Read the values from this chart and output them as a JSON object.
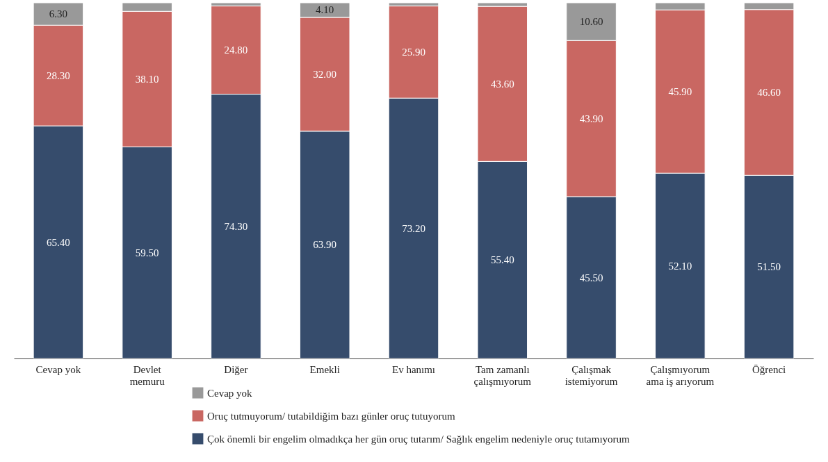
{
  "chart_data": {
    "type": "bar",
    "stacked": true,
    "categories": [
      "Cevap yok",
      "Devlet memuru",
      "Diğer",
      "Emekli",
      "Ev hanımı",
      "Tam zamanlı çalışmıyorum",
      "Çalışmak istemiyorum",
      "Çalışmıyorum ama iş arıyorum",
      "Öğrenci"
    ],
    "series": [
      {
        "name": "Çok önemli bir engelim olmadıkça her gün oruç tutarım/ Sağlık engelim nedeniyle oruç tutamıyorum",
        "color": "#364c6c",
        "values": [
          65.4,
          59.5,
          74.3,
          63.9,
          73.2,
          55.4,
          45.5,
          52.1,
          51.5
        ],
        "value_labels": [
          "65.40",
          "59.50",
          "74.30",
          "63.90",
          "73.20",
          "55.40",
          "45.50",
          "52.10",
          "51.50"
        ]
      },
      {
        "name": "Oruç tutmuyorum/ tutabildiğim bazı günler oruç tutuyorum",
        "color": "#c96762",
        "values": [
          28.3,
          38.1,
          24.8,
          32.0,
          25.9,
          43.6,
          43.9,
          45.9,
          46.6
        ],
        "value_labels": [
          "28.30",
          "38.10",
          "24.80",
          "32.00",
          "25.90",
          "43.60",
          "43.90",
          "45.90",
          "46.60"
        ]
      },
      {
        "name": "Cevap yok",
        "color": "#999999",
        "values": [
          6.3,
          2.4,
          0.9,
          4.1,
          0.9,
          1.0,
          10.6,
          2.0,
          1.9
        ],
        "value_labels": [
          "6.30",
          null,
          null,
          "4.10",
          null,
          null,
          "10.60",
          null,
          null
        ]
      }
    ],
    "legend": "bottom",
    "tick_labels": "x"
  }
}
